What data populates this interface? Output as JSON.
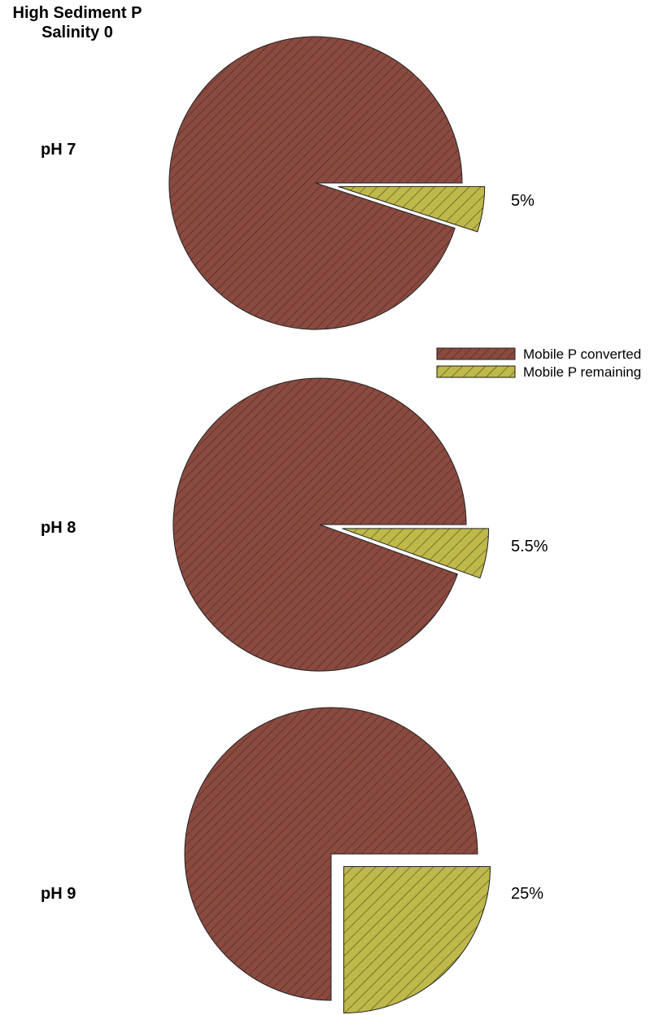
{
  "chart_data": {
    "type": "pie",
    "title": "High Sediment P",
    "subtitle": "Salinity 0",
    "legend": {
      "placement": "right",
      "entries": [
        {
          "label": "Mobile P converted",
          "color": "#8a4a3f"
        },
        {
          "label": "Mobile P remaining",
          "color": "#bfb84a"
        }
      ]
    },
    "pies": [
      {
        "label": "pH 7",
        "slices": [
          {
            "name": "Mobile P converted",
            "value": 95,
            "color": "#8a4a3f"
          },
          {
            "name": "Mobile P remaining",
            "value": 5,
            "color": "#bfb84a",
            "exploded": true,
            "data_label": "5%"
          }
        ]
      },
      {
        "label": "pH 8",
        "slices": [
          {
            "name": "Mobile P converted",
            "value": 94.5,
            "color": "#8a4a3f"
          },
          {
            "name": "Mobile P remaining",
            "value": 5.5,
            "color": "#bfb84a",
            "exploded": true,
            "data_label": "5.5%"
          }
        ]
      },
      {
        "label": "pH 9",
        "slices": [
          {
            "name": "Mobile P converted",
            "value": 75,
            "color": "#8a4a3f"
          },
          {
            "name": "Mobile P remaining",
            "value": 25,
            "color": "#bfb84a",
            "exploded": true,
            "data_label": "25%"
          }
        ]
      }
    ]
  }
}
